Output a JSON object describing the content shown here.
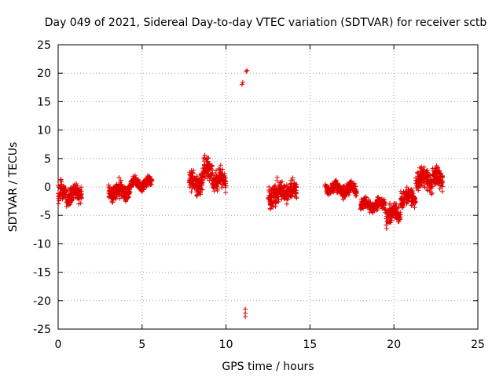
{
  "chart_data": {
    "type": "scatter",
    "title": "Day 049 of 2021, Sidereal Day-to-day VTEC variation (SDTVAR) for receiver sctb",
    "xlabel": "GPS time / hours",
    "ylabel": "SDTVAR / TECUs",
    "xlim": [
      0,
      25
    ],
    "ylim": [
      -25,
      25
    ],
    "xticks": [
      "0",
      "5",
      "10",
      "15",
      "20",
      "25"
    ],
    "yticks": [
      "-25",
      "-20",
      "-15",
      "-10",
      "-5",
      "0",
      "5",
      "10",
      "15",
      "20",
      "25"
    ],
    "grid": true,
    "marker": "plus",
    "color": "#e00000",
    "clusters": [
      {
        "x0": 0.0,
        "x1": 1.4,
        "center": -1.2,
        "spread": 1.6
      },
      {
        "x0": 3.0,
        "x1": 4.3,
        "center": -0.8,
        "spread": 1.4
      },
      {
        "x0": 4.3,
        "x1": 5.6,
        "center": 0.6,
        "spread": 0.8
      },
      {
        "x0": 7.8,
        "x1": 8.6,
        "center": 0.6,
        "spread": 1.8
      },
      {
        "x0": 8.6,
        "x1": 9.2,
        "center": 2.6,
        "spread": 2.0
      },
      {
        "x0": 9.2,
        "x1": 10.0,
        "center": 1.2,
        "spread": 1.5
      },
      {
        "x0": 12.5,
        "x1": 13.2,
        "center": -1.5,
        "spread": 1.8
      },
      {
        "x0": 13.2,
        "x1": 14.2,
        "center": -0.6,
        "spread": 1.5
      },
      {
        "x0": 15.9,
        "x1": 16.6,
        "center": -0.1,
        "spread": 0.8
      },
      {
        "x0": 16.6,
        "x1": 17.8,
        "center": -0.5,
        "spread": 1.0
      },
      {
        "x0": 18.0,
        "x1": 19.5,
        "center": -3.2,
        "spread": 1.0
      },
      {
        "x0": 19.5,
        "x1": 20.4,
        "center": -4.8,
        "spread": 1.6
      },
      {
        "x0": 20.4,
        "x1": 21.3,
        "center": -1.8,
        "spread": 1.4
      },
      {
        "x0": 21.3,
        "x1": 22.9,
        "center": 1.5,
        "spread": 1.8
      }
    ],
    "outliers": [
      {
        "x": 11.0,
        "y": 18.4
      },
      {
        "x": 10.95,
        "y": 18.0
      },
      {
        "x": 11.2,
        "y": 20.3
      },
      {
        "x": 11.25,
        "y": 20.5
      },
      {
        "x": 11.15,
        "y": -21.5
      },
      {
        "x": 11.15,
        "y": -22.2
      },
      {
        "x": 11.15,
        "y": -22.8
      }
    ]
  }
}
